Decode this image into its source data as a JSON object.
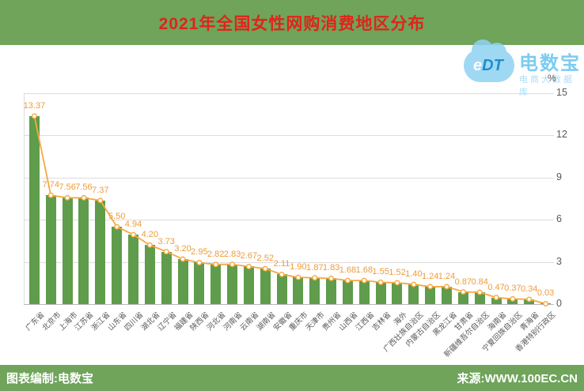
{
  "header": {
    "title": "2021年全国女性网购消费地区分布"
  },
  "watermark": {
    "logo_text_e": "e",
    "logo_text_dt": "DT",
    "brand": "电数宝",
    "tagline": "电商大数据库"
  },
  "chart_data": {
    "type": "bar",
    "overlay": "line",
    "title": "2021年全国女性网购消费地区分布",
    "unit": "%",
    "ylim": [
      0,
      15
    ],
    "yticks": [
      0,
      3,
      6,
      9,
      12,
      15
    ],
    "grid": true,
    "legend": "none",
    "categories": [
      "广东省",
      "北京市",
      "上海市",
      "江苏省",
      "浙江省",
      "山东省",
      "四川省",
      "湖北省",
      "辽宁省",
      "福建省",
      "陕西省",
      "河北省",
      "河南省",
      "云南省",
      "湖南省",
      "安徽省",
      "重庆市",
      "天津市",
      "贵州省",
      "山西省",
      "江西省",
      "吉林省",
      "海外",
      "广西壮族自治区",
      "内蒙古自治区",
      "黑龙江省",
      "甘肃省",
      "新疆维吾尔自治区",
      "海南省",
      "宁夏回族自治区",
      "青海省",
      "香港特别行政区"
    ],
    "values": [
      "13.37",
      "7.74",
      "7.56",
      "7.56",
      "7.37",
      "5.50",
      "4.94",
      "4.20",
      "3.73",
      "3.20",
      "2.95",
      "2.82",
      "2.83",
      "2.67",
      "2.52",
      "2.11",
      "1.90",
      "1.87",
      "1.83",
      "1.68",
      "1.68",
      "1.55",
      "1.52",
      "1.40",
      "1.24",
      "1.24",
      "0.87",
      "0.84",
      "0.47",
      "0.37",
      "0.34",
      "0.03"
    ]
  },
  "footer": {
    "left": "图表编制:电数宝",
    "right": "来源:WWW.100EC.CN"
  },
  "colors": {
    "banner_green": "#6fa45a",
    "title_red": "#e2231a",
    "bar_green": "#5f9c4b",
    "line_orange": "#f7a83f",
    "label_orange": "#ee9c3c",
    "axis_gray": "#595959",
    "watermark_blue": "#7bccf0"
  }
}
